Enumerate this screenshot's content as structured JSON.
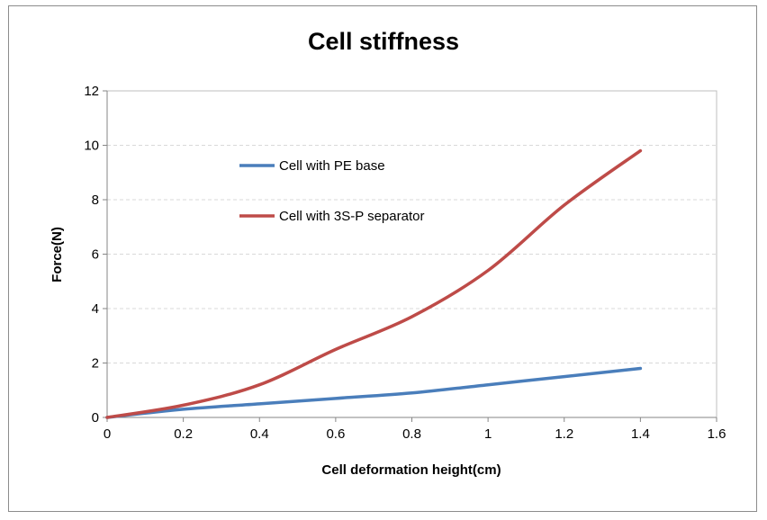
{
  "chart_data": {
    "type": "line",
    "title": "Cell stiffness",
    "xlabel": "Cell deformation height(cm)",
    "ylabel": "Force(N)",
    "xlim": [
      0,
      1.6
    ],
    "ylim": [
      0,
      12
    ],
    "xticks": [
      "0",
      "0.2",
      "0.4",
      "0.6",
      "0.8",
      "1",
      "1.2",
      "1.4",
      "1.6"
    ],
    "yticks": [
      "0",
      "2",
      "4",
      "6",
      "8",
      "10",
      "12"
    ],
    "grid": "horizontal-dashed",
    "legend_position": "inside-top-left",
    "series": [
      {
        "name": "Cell with PE base",
        "color": "#4a7ebb",
        "x": [
          0,
          0.2,
          0.4,
          0.6,
          0.8,
          1.0,
          1.2,
          1.4
        ],
        "y": [
          0,
          0.3,
          0.5,
          0.7,
          0.9,
          1.2,
          1.5,
          1.8
        ]
      },
      {
        "name": "Cell with 3S-P separator",
        "color": "#be4b48",
        "x": [
          0,
          0.2,
          0.4,
          0.6,
          0.8,
          1.0,
          1.2,
          1.4
        ],
        "y": [
          0,
          0.45,
          1.2,
          2.5,
          3.7,
          5.4,
          7.8,
          9.8
        ]
      }
    ]
  }
}
